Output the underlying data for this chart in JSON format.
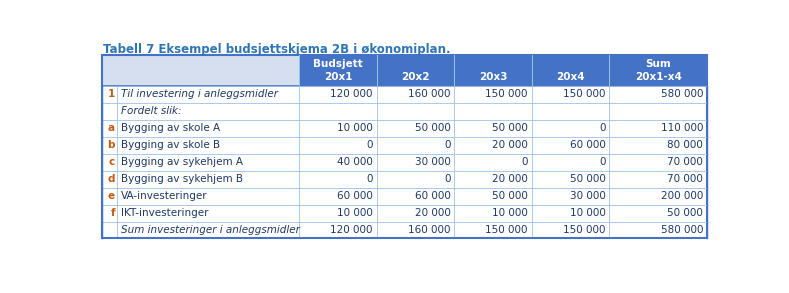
{
  "title": "Tabell 7 Eksempel budsjettskjema 2B i økonomiplan.",
  "title_color": "#2e75b6",
  "header_bg": "#4472c4",
  "header_text_color": "#ffffff",
  "col_header_line1": [
    "Budsjett",
    "",
    "",
    "",
    "Sum"
  ],
  "col_header_line2": [
    "20x1",
    "20x2",
    "20x3",
    "20x4",
    "20x1-x4"
  ],
  "rows": [
    {
      "prefix": "1",
      "label": "Til investering i anleggsmidler",
      "values": [
        "120 000",
        "160 000",
        "150 000",
        "150 000",
        "580 000"
      ],
      "italic": true,
      "prefix_color": "#c55a11",
      "label_color": "#1f3864",
      "value_color": "#1f3864"
    },
    {
      "prefix": "",
      "label": "Fordelt slik:",
      "values": [
        "",
        "",
        "",
        "",
        ""
      ],
      "italic": true,
      "prefix_color": "#1f3864",
      "label_color": "#1f3864",
      "value_color": "#1f3864"
    },
    {
      "prefix": "a",
      "label": "Bygging av skole A",
      "values": [
        "10 000",
        "50 000",
        "50 000",
        "0",
        "110 000"
      ],
      "italic": false,
      "prefix_color": "#c55a11",
      "label_color": "#1f3864",
      "value_color": "#1f3864"
    },
    {
      "prefix": "b",
      "label": "Bygging av skole B",
      "values": [
        "0",
        "0",
        "20 000",
        "60 000",
        "80 000"
      ],
      "italic": false,
      "prefix_color": "#c55a11",
      "label_color": "#1f3864",
      "value_color": "#1f3864"
    },
    {
      "prefix": "c",
      "label": "Bygging av sykehjem A",
      "values": [
        "40 000",
        "30 000",
        "0",
        "0",
        "70 000"
      ],
      "italic": false,
      "prefix_color": "#c55a11",
      "label_color": "#1f3864",
      "value_color": "#1f3864"
    },
    {
      "prefix": "d",
      "label": "Bygging av sykehjem B",
      "values": [
        "0",
        "0",
        "20 000",
        "50 000",
        "70 000"
      ],
      "italic": false,
      "prefix_color": "#c55a11",
      "label_color": "#1f3864",
      "value_color": "#1f3864"
    },
    {
      "prefix": "e",
      "label": "VA-investeringer",
      "values": [
        "60 000",
        "60 000",
        "50 000",
        "30 000",
        "200 000"
      ],
      "italic": false,
      "prefix_color": "#c55a11",
      "label_color": "#1f3864",
      "value_color": "#1f3864"
    },
    {
      "prefix": "f",
      "label": "IKT-investeringer",
      "values": [
        "10 000",
        "20 000",
        "10 000",
        "10 000",
        "50 000"
      ],
      "italic": false,
      "prefix_color": "#c55a11",
      "label_color": "#1f3864",
      "value_color": "#1f3864"
    },
    {
      "prefix": "",
      "label": "Sum investeringer i anleggsmidler",
      "values": [
        "120 000",
        "160 000",
        "150 000",
        "150 000",
        "580 000"
      ],
      "italic": true,
      "prefix_color": "#1f3864",
      "label_color": "#1f3864",
      "value_color": "#1f3864"
    }
  ],
  "outer_border_color": "#4472c4",
  "inner_border_color": "#9dc3e6",
  "header_left_bg": "#d6dff0",
  "figsize": [
    7.89,
    2.93
  ],
  "dpi": 100
}
